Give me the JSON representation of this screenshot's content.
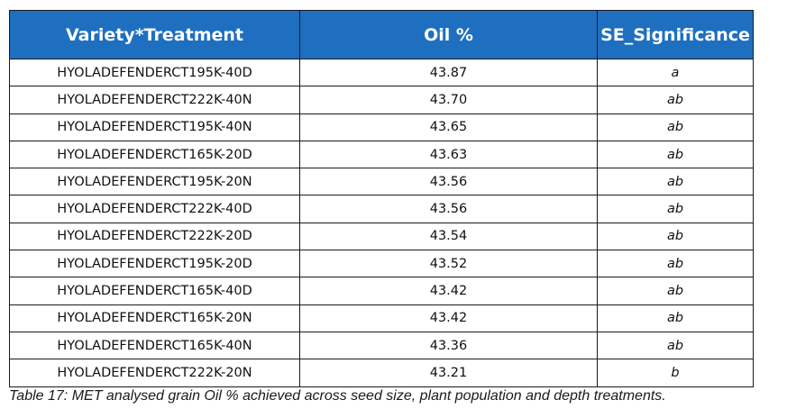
{
  "table": {
    "headers": [
      "Variety*Treatment",
      "Oil %",
      "SE_Significance"
    ],
    "rows": [
      [
        "HYOLADEFENDERCT195K-40D",
        "43.87",
        "a"
      ],
      [
        "HYOLADEFENDERCT222K-40N",
        "43.70",
        "ab"
      ],
      [
        "HYOLADEFENDERCT195K-40N",
        "43.65",
        "ab"
      ],
      [
        "HYOLADEFENDERCT165K-20D",
        "43.63",
        "ab"
      ],
      [
        "HYOLADEFENDERCT195K-20N",
        "43.56",
        "ab"
      ],
      [
        "HYOLADEFENDERCT222K-40D",
        "43.56",
        "ab"
      ],
      [
        "HYOLADEFENDERCT222K-20D",
        "43.54",
        "ab"
      ],
      [
        "HYOLADEFENDERCT195K-20D",
        "43.52",
        "ab"
      ],
      [
        "HYOLADEFENDERCT165K-40D",
        "43.42",
        "ab"
      ],
      [
        "HYOLADEFENDERCT165K-20N",
        "43.42",
        "ab"
      ],
      [
        "HYOLADEFENDERCT165K-40N",
        "43.36",
        "ab"
      ],
      [
        "HYOLADEFENDERCT222K-20N",
        "43.21",
        "b"
      ]
    ]
  },
  "caption": "Table 17: MET analysed grain Oil % achieved across seed size, plant population and depth treatments.",
  "colors": {
    "header_bg": "#1f6fc0",
    "header_text": "#ffffff",
    "border": "#1a1a1a"
  }
}
